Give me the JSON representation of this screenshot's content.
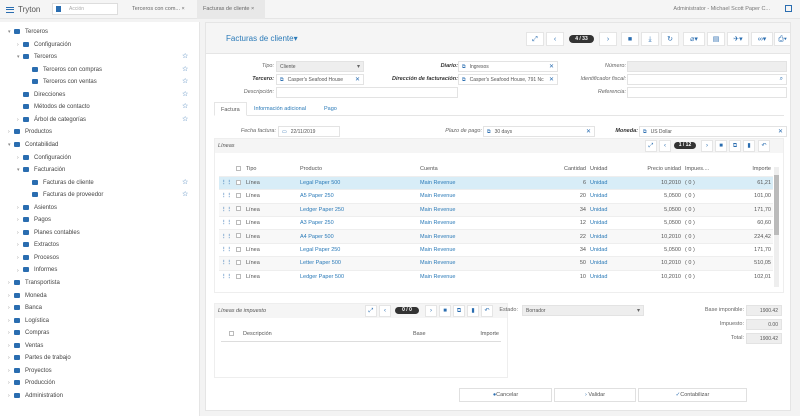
{
  "app": {
    "title": "Tryton",
    "action_placeholder": "Acción",
    "user": "Administrator - Michael Scott Paper C..."
  },
  "tabs": [
    {
      "label": "Terceros con com..."
    },
    {
      "label": "Facturas de cliente"
    }
  ],
  "sidebar": {
    "items": [
      {
        "label": "Terceros",
        "level": 0,
        "arrow": "▾",
        "starred": false
      },
      {
        "label": "Configuración",
        "level": 1,
        "arrow": "›",
        "starred": false
      },
      {
        "label": "Terceros",
        "level": 1,
        "arrow": "▾",
        "starred": true
      },
      {
        "label": "Terceros con compras",
        "level": 2,
        "arrow": "",
        "starred": true
      },
      {
        "label": "Terceros con ventas",
        "level": 2,
        "arrow": "",
        "starred": true
      },
      {
        "label": "Direcciones",
        "level": 1,
        "arrow": "",
        "starred": true
      },
      {
        "label": "Métodos de contacto",
        "level": 1,
        "arrow": "",
        "starred": true
      },
      {
        "label": "Árbol de categorías",
        "level": 1,
        "arrow": "›",
        "starred": true
      },
      {
        "label": "Productos",
        "level": 0,
        "arrow": "›",
        "starred": false
      },
      {
        "label": "Contabilidad",
        "level": 0,
        "arrow": "▾",
        "starred": false
      },
      {
        "label": "Configuración",
        "level": 1,
        "arrow": "›",
        "starred": false
      },
      {
        "label": "Facturación",
        "level": 1,
        "arrow": "▾",
        "starred": false
      },
      {
        "label": "Facturas de cliente",
        "level": 2,
        "arrow": "",
        "starred": true
      },
      {
        "label": "Facturas de proveedor",
        "level": 2,
        "arrow": "",
        "starred": true
      },
      {
        "label": "Asientos",
        "level": 1,
        "arrow": "›",
        "starred": false
      },
      {
        "label": "Pagos",
        "level": 1,
        "arrow": "›",
        "starred": false
      },
      {
        "label": "Planes contables",
        "level": 1,
        "arrow": "›",
        "starred": false
      },
      {
        "label": "Extractos",
        "level": 1,
        "arrow": "›",
        "starred": false
      },
      {
        "label": "Procesos",
        "level": 1,
        "arrow": "›",
        "starred": false
      },
      {
        "label": "Informes",
        "level": 1,
        "arrow": "›",
        "starred": false
      },
      {
        "label": "Transportista",
        "level": 0,
        "arrow": "›",
        "starred": false
      },
      {
        "label": "Moneda",
        "level": 0,
        "arrow": "›",
        "starred": false
      },
      {
        "label": "Banca",
        "level": 0,
        "arrow": "›",
        "starred": false
      },
      {
        "label": "Logística",
        "level": 0,
        "arrow": "›",
        "starred": false
      },
      {
        "label": "Compras",
        "level": 0,
        "arrow": "›",
        "starred": false
      },
      {
        "label": "Ventas",
        "level": 0,
        "arrow": "›",
        "starred": false
      },
      {
        "label": "Partes de trabajo",
        "level": 0,
        "arrow": "›",
        "starred": false
      },
      {
        "label": "Proyectos",
        "level": 0,
        "arrow": "›",
        "starred": false
      },
      {
        "label": "Producción",
        "level": 0,
        "arrow": "›",
        "starred": false
      },
      {
        "label": "Administration",
        "level": 0,
        "arrow": "›",
        "starred": false
      }
    ]
  },
  "form": {
    "title": "Facturas de cliente",
    "record_pos": "4 / 33",
    "tipo_label": "Tipo:",
    "tipo": "Cliente",
    "tercero_label": "Tercero:",
    "tercero": "Casper's Seafood House",
    "descripcion_label": "Descripción:",
    "diario_label": "Diario:",
    "diario": "Ingresos",
    "direccion_label": "Dirección de facturación:",
    "direccion": "Casper's Seafood House, 791 Nc",
    "numero_label": "Número:",
    "idfiscal_label": "Identificador fiscal:",
    "referencia_label": "Referencia:",
    "tabs": [
      "Factura",
      "Información adicional",
      "Pago"
    ],
    "fecha_label": "Fecha factura:",
    "fecha": "22/11/2019",
    "plazo_label": "Plazo de pago:",
    "plazo": "30 days",
    "moneda_label": "Moneda:",
    "moneda": "US Dollar"
  },
  "lines": {
    "title": "Líneas",
    "pos": "1 / 12",
    "columns": [
      "Tipo",
      "Producto",
      "Cuenta",
      "Cantidad",
      "Unidad",
      "Precio unidad",
      "Impues....",
      "Importe"
    ],
    "rows": [
      [
        "Línea",
        "Legal Paper 500",
        "Main Revenue",
        "6",
        "Unidad",
        "10,2010",
        "( 0 )",
        "61,21"
      ],
      [
        "Línea",
        "A5 Paper 250",
        "Main Revenue",
        "20",
        "Unidad",
        "5,0500",
        "( 0 )",
        "101,00"
      ],
      [
        "Línea",
        "Ledger Paper 250",
        "Main Revenue",
        "34",
        "Unidad",
        "5,0500",
        "( 0 )",
        "171,70"
      ],
      [
        "Línea",
        "A3 Paper 250",
        "Main Revenue",
        "12",
        "Unidad",
        "5,0500",
        "( 0 )",
        "60,60"
      ],
      [
        "Línea",
        "A4 Paper 500",
        "Main Revenue",
        "22",
        "Unidad",
        "10,2010",
        "( 0 )",
        "224,42"
      ],
      [
        "Línea",
        "Legal Paper 250",
        "Main Revenue",
        "34",
        "Unidad",
        "5,0500",
        "( 0 )",
        "171,70"
      ],
      [
        "Línea",
        "Letter Paper 500",
        "Main Revenue",
        "50",
        "Unidad",
        "10,2010",
        "( 0 )",
        "510,05"
      ],
      [
        "Línea",
        "Ledger Paper 500",
        "Main Revenue",
        "10",
        "Unidad",
        "10,2010",
        "( 0 )",
        "102,01"
      ]
    ]
  },
  "tax": {
    "title": "Líneas de impuesto",
    "pos": "0 / 0",
    "columns": [
      "Descripción",
      "Base",
      "Importe"
    ]
  },
  "totals": {
    "estado_label": "Estado:",
    "estado": "Borrador",
    "base_label": "Base imponible:",
    "base": "1900.42",
    "impuesto_label": "Impuesto:",
    "impuesto": "0.00",
    "total_label": "Total:",
    "total": "1900.42"
  },
  "buttons": {
    "cancel": "Cancelar",
    "validate": "Validar",
    "post": "Contabilizar"
  },
  "colors": {
    "accent": "#2a6db0",
    "link": "#2a7ab8",
    "selected_row": "#d8edf7"
  }
}
